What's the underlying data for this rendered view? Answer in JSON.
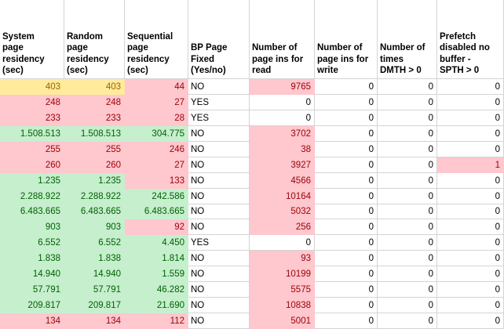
{
  "app": {
    "type": "spreadsheet-grid"
  },
  "styles": {
    "fill_bad_bg": "#FFC7CE",
    "fill_bad_text": "#9C0006",
    "fill_good_bg": "#C6EFCE",
    "fill_good_text": "#006100",
    "fill_neutral_bg": "#FFEB9C",
    "fill_neutral_text": "#9C6500",
    "gridline": "#d4d4d4"
  },
  "columns": [
    {
      "header": "System\npage\nresidency\n(sec)",
      "align": "right"
    },
    {
      "header": "Random\npage\nresidency\n(sec)",
      "align": "right"
    },
    {
      "header": "Sequential\npage\nresidency\n(sec)",
      "align": "right"
    },
    {
      "header": "BP Page\nFixed\n(Yes/no)",
      "align": "left"
    },
    {
      "header": "Number of\npage ins for\nread",
      "align": "right"
    },
    {
      "header": "Number of\npage ins for\nwrite",
      "align": "right"
    },
    {
      "header": "Number of\ntimes\nDMTH > 0",
      "align": "right"
    },
    {
      "header": "Prefetch\ndisabled no\nbuffer -\nSPTH > 0",
      "align": "right"
    }
  ],
  "rows": [
    {
      "values": [
        "403",
        "403",
        "44",
        "NO",
        "9765",
        "0",
        "0",
        "0"
      ],
      "fills": [
        "yellow",
        "yellow",
        "pink",
        "none",
        "pink",
        "none",
        "none",
        "none"
      ]
    },
    {
      "values": [
        "248",
        "248",
        "27",
        "YES",
        "0",
        "0",
        "0",
        "0"
      ],
      "fills": [
        "pink",
        "pink",
        "pink",
        "none",
        "none",
        "none",
        "none",
        "none"
      ]
    },
    {
      "values": [
        "233",
        "233",
        "28",
        "YES",
        "0",
        "0",
        "0",
        "0"
      ],
      "fills": [
        "pink",
        "pink",
        "pink",
        "none",
        "none",
        "none",
        "none",
        "none"
      ]
    },
    {
      "values": [
        "1.508.513",
        "1.508.513",
        "304.775",
        "NO",
        "3702",
        "0",
        "0",
        "0"
      ],
      "fills": [
        "green",
        "green",
        "green",
        "none",
        "pink",
        "none",
        "none",
        "none"
      ]
    },
    {
      "values": [
        "255",
        "255",
        "246",
        "NO",
        "38",
        "0",
        "0",
        "0"
      ],
      "fills": [
        "pink",
        "pink",
        "pink",
        "none",
        "pink",
        "none",
        "none",
        "none"
      ]
    },
    {
      "values": [
        "260",
        "260",
        "27",
        "NO",
        "3927",
        "0",
        "0",
        "1"
      ],
      "fills": [
        "pink",
        "pink",
        "pink",
        "none",
        "pink",
        "none",
        "none",
        "pink"
      ]
    },
    {
      "values": [
        "1.235",
        "1.235",
        "133",
        "NO",
        "4566",
        "0",
        "0",
        "0"
      ],
      "fills": [
        "green",
        "green",
        "pink",
        "none",
        "pink",
        "none",
        "none",
        "none"
      ]
    },
    {
      "values": [
        "2.288.922",
        "2.288.922",
        "242.586",
        "NO",
        "10164",
        "0",
        "0",
        "0"
      ],
      "fills": [
        "green",
        "green",
        "green",
        "none",
        "pink",
        "none",
        "none",
        "none"
      ]
    },
    {
      "values": [
        "6.483.665",
        "6.483.665",
        "6.483.665",
        "NO",
        "5032",
        "0",
        "0",
        "0"
      ],
      "fills": [
        "green",
        "green",
        "green",
        "none",
        "pink",
        "none",
        "none",
        "none"
      ]
    },
    {
      "values": [
        "903",
        "903",
        "92",
        "NO",
        "256",
        "0",
        "0",
        "0"
      ],
      "fills": [
        "green",
        "green",
        "pink",
        "none",
        "pink",
        "none",
        "none",
        "none"
      ]
    },
    {
      "values": [
        "6.552",
        "6.552",
        "4.450",
        "YES",
        "0",
        "0",
        "0",
        "0"
      ],
      "fills": [
        "green",
        "green",
        "green",
        "none",
        "none",
        "none",
        "none",
        "none"
      ]
    },
    {
      "values": [
        "1.838",
        "1.838",
        "1.814",
        "NO",
        "93",
        "0",
        "0",
        "0"
      ],
      "fills": [
        "green",
        "green",
        "green",
        "none",
        "pink",
        "none",
        "none",
        "none"
      ]
    },
    {
      "values": [
        "14.940",
        "14.940",
        "1.559",
        "NO",
        "10199",
        "0",
        "0",
        "0"
      ],
      "fills": [
        "green",
        "green",
        "green",
        "none",
        "pink",
        "none",
        "none",
        "none"
      ]
    },
    {
      "values": [
        "57.791",
        "57.791",
        "46.282",
        "NO",
        "5575",
        "0",
        "0",
        "0"
      ],
      "fills": [
        "green",
        "green",
        "green",
        "none",
        "pink",
        "none",
        "none",
        "none"
      ]
    },
    {
      "values": [
        "209.817",
        "209.817",
        "21.690",
        "NO",
        "10838",
        "0",
        "0",
        "0"
      ],
      "fills": [
        "green",
        "green",
        "green",
        "none",
        "pink",
        "none",
        "none",
        "none"
      ]
    },
    {
      "values": [
        "134",
        "134",
        "112",
        "NO",
        "5001",
        "0",
        "0",
        "0"
      ],
      "fills": [
        "pink",
        "pink",
        "pink",
        "none",
        "pink",
        "none",
        "none",
        "none"
      ]
    }
  ]
}
